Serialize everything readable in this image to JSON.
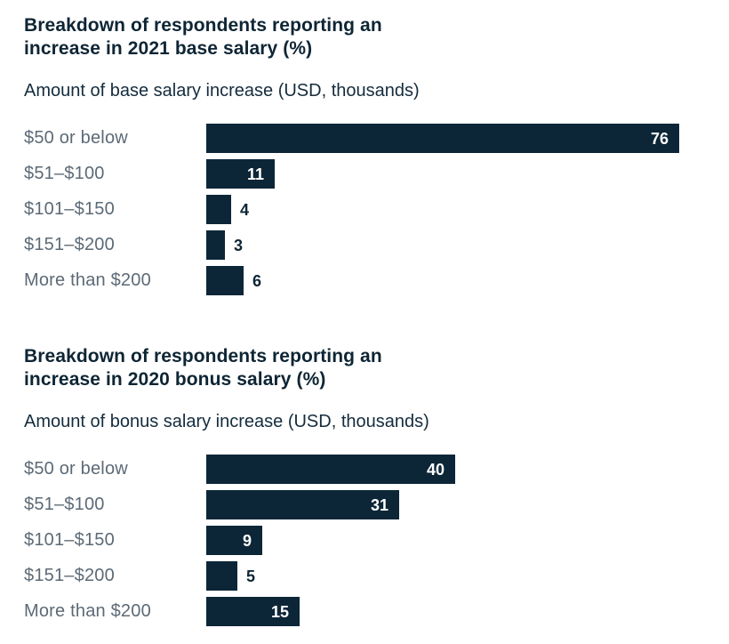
{
  "colors": {
    "bar": "#0c2637",
    "title": "#0e2534",
    "subtitle": "#142c3d",
    "row_label": "#5c6a76",
    "value_inside": "#ffffff",
    "value_outside": "#0e2534",
    "background": "#ffffff"
  },
  "chart_data": [
    {
      "type": "bar",
      "orientation": "horizontal",
      "title": "Breakdown of respondents reporting an increase in 2021 base salary (%)",
      "subtitle": "Amount of base salary increase (USD, thousands)",
      "categories": [
        "$50 or below",
        "$51–$100",
        "$101–$150",
        "$151–$200",
        "More than $200"
      ],
      "values": [
        76,
        11,
        4,
        3,
        6
      ],
      "xlim": [
        0,
        80
      ],
      "grid": false,
      "legend": false,
      "value_labels": true
    },
    {
      "type": "bar",
      "orientation": "horizontal",
      "title": "Breakdown of respondents reporting an increase in 2020 bonus salary (%)",
      "subtitle": "Amount of bonus salary increase (USD, thousands)",
      "categories": [
        "$50 or below",
        "$51–$100",
        "$101–$150",
        "$151–$200",
        "More than $200"
      ],
      "values": [
        40,
        31,
        9,
        5,
        15
      ],
      "xlim": [
        0,
        80
      ],
      "grid": false,
      "legend": false,
      "value_labels": true
    }
  ]
}
